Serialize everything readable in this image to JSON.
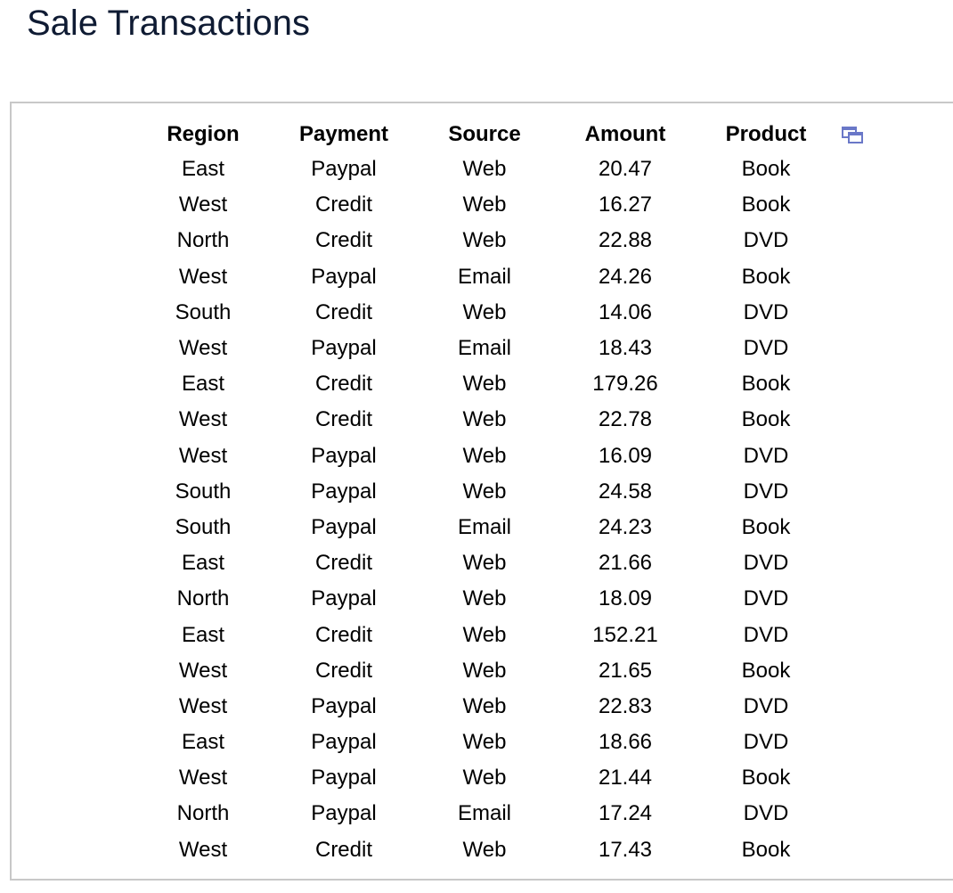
{
  "page": {
    "title": "Sale Transactions"
  },
  "table": {
    "columns": [
      "Region",
      "Payment",
      "Source",
      "Amount",
      "Product"
    ],
    "rows": [
      [
        "East",
        "Paypal",
        "Web",
        "20.47",
        "Book"
      ],
      [
        "West",
        "Credit",
        "Web",
        "16.27",
        "Book"
      ],
      [
        "North",
        "Credit",
        "Web",
        "22.88",
        "DVD"
      ],
      [
        "West",
        "Paypal",
        "Email",
        "24.26",
        "Book"
      ],
      [
        "South",
        "Credit",
        "Web",
        "14.06",
        "DVD"
      ],
      [
        "West",
        "Paypal",
        "Email",
        "18.43",
        "DVD"
      ],
      [
        "East",
        "Credit",
        "Web",
        "179.26",
        "Book"
      ],
      [
        "West",
        "Credit",
        "Web",
        "22.78",
        "Book"
      ],
      [
        "West",
        "Paypal",
        "Web",
        "16.09",
        "DVD"
      ],
      [
        "South",
        "Paypal",
        "Web",
        "24.58",
        "DVD"
      ],
      [
        "South",
        "Paypal",
        "Email",
        "24.23",
        "Book"
      ],
      [
        "East",
        "Credit",
        "Web",
        "21.66",
        "DVD"
      ],
      [
        "North",
        "Paypal",
        "Web",
        "18.09",
        "DVD"
      ],
      [
        "East",
        "Credit",
        "Web",
        "152.21",
        "DVD"
      ],
      [
        "West",
        "Credit",
        "Web",
        "21.65",
        "Book"
      ],
      [
        "West",
        "Paypal",
        "Web",
        "22.83",
        "DVD"
      ],
      [
        "East",
        "Paypal",
        "Web",
        "18.66",
        "DVD"
      ],
      [
        "West",
        "Paypal",
        "Web",
        "21.44",
        "Book"
      ],
      [
        "North",
        "Paypal",
        "Email",
        "17.24",
        "DVD"
      ],
      [
        "West",
        "Credit",
        "Web",
        "17.43",
        "Book"
      ]
    ]
  },
  "icons": {
    "popout": "popout-window-icon"
  },
  "colors": {
    "title": "#0f1b33",
    "icon": "#6a78c8",
    "panel_border": "#c8c8c8"
  }
}
